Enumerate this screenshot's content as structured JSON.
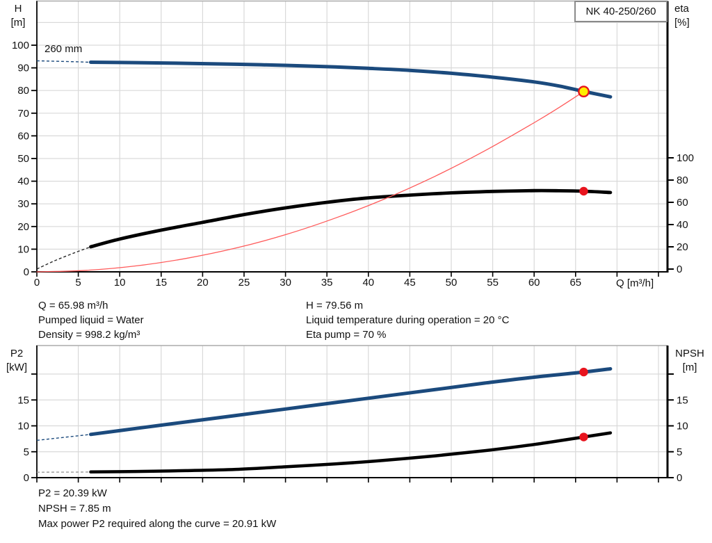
{
  "page": {
    "background": "#ffffff"
  },
  "colors": {
    "curve_blue": "#1b4a7d",
    "curve_black": "#000000",
    "system_red": "#ff5a5a",
    "marker_red": "#e8141e",
    "marker_yellow": "#ffee00",
    "grid": "#d9d9d9",
    "top_border": "#ababab",
    "intro_gray": "#9a9a9a"
  },
  "operating_point": {
    "left": [
      "Q = 65.98 m³/h",
      "Pumped liquid = Water",
      "Density = 998.2 kg/m³"
    ],
    "right": [
      "H = 79.56 m",
      "Liquid temperature during operation = 20 °C",
      "Eta pump = 70 %"
    ]
  },
  "power_summary": [
    "P2 = 20.39 kW",
    "NPSH = 7.85 m",
    "Max power P2 required along the curve = 20.91 kW"
  ],
  "chart_data": [
    {
      "type": "line",
      "badge": "NK 40-250/260",
      "annotation": "260 mm",
      "xlabel": "Q [m³/h]",
      "ylabel_left": [
        "H",
        "[m]"
      ],
      "ylabel_right": [
        "eta",
        "[%]"
      ],
      "x_axis": {
        "min": 0,
        "max": 76,
        "grid_step": 5,
        "tick_step": 5,
        "labeled_ticks": [
          0,
          5,
          10,
          15,
          20,
          25,
          30,
          35,
          40,
          45,
          50,
          55,
          60,
          65
        ]
      },
      "y_left": {
        "min": 0,
        "max": 119,
        "labeled_ticks": [
          0,
          10,
          20,
          30,
          40,
          50,
          60,
          70,
          80,
          90,
          100
        ],
        "unlabeled_ticks": [],
        "grid": [
          10,
          20,
          30,
          40,
          50,
          60,
          70,
          80,
          90,
          100,
          110
        ]
      },
      "y_right": {
        "min": 0,
        "max": 100,
        "labeled_ticks": [
          0,
          20,
          40,
          60,
          80,
          100
        ],
        "unlabeled_ticks": []
      },
      "series": [
        {
          "name": "eta-curve",
          "axis": "right",
          "color": "#000000",
          "width": 4.8,
          "intro_color": "#2a2a2a",
          "dash_intro": [
            [
              0,
              0
            ],
            [
              2,
              7
            ],
            [
              4.5,
              14.5
            ],
            [
              6.5,
              20
            ]
          ],
          "points": [
            [
              6.5,
              20
            ],
            [
              10,
              27
            ],
            [
              15,
              35
            ],
            [
              20,
              42
            ],
            [
              25,
              49
            ],
            [
              30,
              55
            ],
            [
              35,
              60
            ],
            [
              40,
              64
            ],
            [
              45,
              66.5
            ],
            [
              50,
              68.5
            ],
            [
              55,
              69.8
            ],
            [
              60,
              70.5
            ],
            [
              63,
              70.4
            ],
            [
              66,
              70
            ],
            [
              69.2,
              68.8
            ]
          ]
        },
        {
          "name": "system-curve",
          "axis": "left",
          "color": "#ff5a5a",
          "width": 1.3,
          "points": [
            [
              0,
              0
            ],
            [
              6,
              0.66
            ],
            [
              12,
              2.63
            ],
            [
              18,
              5.92
            ],
            [
              24,
              10.5
            ],
            [
              30,
              16.4
            ],
            [
              36,
              23.7
            ],
            [
              42,
              32.2
            ],
            [
              48,
              42.1
            ],
            [
              54,
              53.3
            ],
            [
              60,
              65.8
            ],
            [
              63,
              72.5
            ],
            [
              65.98,
              79.56
            ]
          ]
        },
        {
          "name": "head-curve",
          "axis": "left",
          "color": "#1b4a7d",
          "width": 5,
          "intro_color": "#1b4a7d",
          "dash_intro": [
            [
              0,
              93.1
            ],
            [
              3,
              92.85
            ],
            [
              6.5,
              92.5
            ]
          ],
          "points": [
            [
              6.5,
              92.5
            ],
            [
              12,
              92.3
            ],
            [
              18,
              92.0
            ],
            [
              24,
              91.6
            ],
            [
              30,
              91.1
            ],
            [
              36,
              90.4
            ],
            [
              40,
              89.8
            ],
            [
              45,
              88.9
            ],
            [
              50,
              87.6
            ],
            [
              55,
              85.9
            ],
            [
              60,
              83.8
            ],
            [
              63,
              82.0
            ],
            [
              66,
              79.6
            ],
            [
              69.2,
              77.2
            ]
          ]
        }
      ],
      "markers": [
        {
          "name": "eta-duty-dot",
          "axis": "right",
          "q": 65.98,
          "v": 70,
          "style": "dot"
        },
        {
          "name": "duty-point",
          "axis": "left",
          "q": 65.98,
          "v": 79.56,
          "style": "duty"
        }
      ]
    },
    {
      "type": "line",
      "badge": "",
      "annotation": "",
      "xlabel": "",
      "ylabel_left": [
        "P2",
        "[kW]"
      ],
      "ylabel_right": [
        "NPSH",
        "[m]"
      ],
      "x_axis": {
        "min": 0,
        "max": 76,
        "grid_step": 5,
        "tick_step": 5,
        "labeled_ticks": []
      },
      "y_left": {
        "min": 0,
        "max": 25.5,
        "labeled_ticks": [
          0,
          5,
          10,
          15
        ],
        "unlabeled_ticks": [
          20
        ],
        "grid": [
          5,
          10,
          15,
          20
        ]
      },
      "y_right": {
        "min": 0,
        "max": 25.5,
        "labeled_ticks": [
          0,
          5,
          10,
          15
        ],
        "unlabeled_ticks": [
          20
        ]
      },
      "series": [
        {
          "name": "npsh-curve",
          "axis": "right",
          "color": "#000000",
          "width": 4.5,
          "intro_color": "#9a9a9a",
          "dash_intro": [
            [
              0,
              1.05
            ],
            [
              6.5,
              1.08
            ]
          ],
          "points": [
            [
              6.5,
              1.1
            ],
            [
              12,
              1.2
            ],
            [
              18,
              1.35
            ],
            [
              24,
              1.6
            ],
            [
              30,
              2.1
            ],
            [
              36,
              2.65
            ],
            [
              42,
              3.35
            ],
            [
              48,
              4.2
            ],
            [
              54,
              5.2
            ],
            [
              60,
              6.4
            ],
            [
              66,
              7.85
            ],
            [
              69.2,
              8.65
            ]
          ]
        },
        {
          "name": "p2-curve",
          "axis": "left",
          "color": "#1b4a7d",
          "width": 5,
          "intro_color": "#1b4a7d",
          "dash_intro": [
            [
              0,
              7.2
            ],
            [
              6.5,
              8.35
            ]
          ],
          "points": [
            [
              6.5,
              8.35
            ],
            [
              12,
              9.5
            ],
            [
              18,
              10.75
            ],
            [
              24,
              12.0
            ],
            [
              30,
              13.25
            ],
            [
              36,
              14.5
            ],
            [
              42,
              15.75
            ],
            [
              48,
              17.0
            ],
            [
              54,
              18.25
            ],
            [
              60,
              19.4
            ],
            [
              66,
              20.39
            ],
            [
              69.2,
              21.0
            ]
          ]
        }
      ],
      "markers": [
        {
          "name": "p2-duty-dot",
          "axis": "left",
          "q": 65.98,
          "v": 20.39,
          "style": "dot"
        },
        {
          "name": "npsh-duty-dot",
          "axis": "right",
          "q": 65.98,
          "v": 7.85,
          "style": "dot"
        }
      ]
    }
  ]
}
